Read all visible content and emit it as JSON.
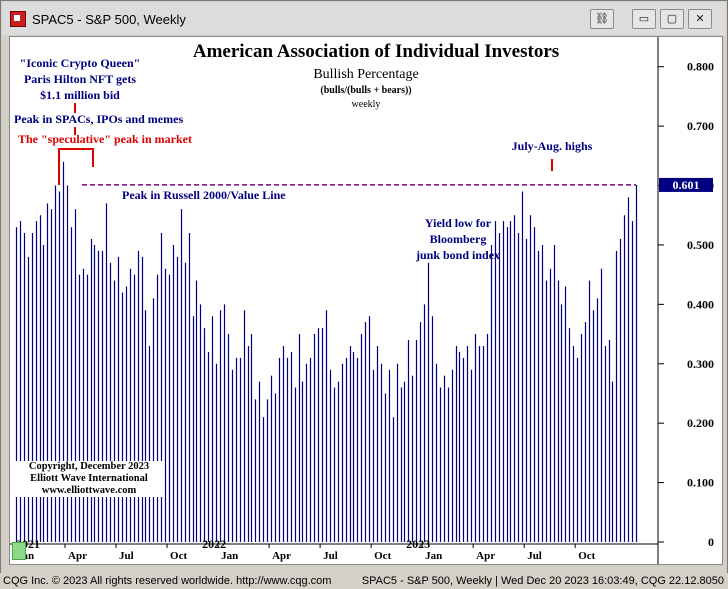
{
  "window": {
    "title": "SPAC5 - S&P 500, Weekly",
    "buttons": {
      "link": "⛓",
      "minimize": "▭",
      "restore": "▢",
      "close": "✕"
    }
  },
  "chart_data": {
    "type": "bar",
    "title": "American Association of Individual Investors",
    "subtitle": "Bullish Percentage",
    "subtitle2": "(bulls/(bulls + bears))",
    "subtitle3": "weekly",
    "ylim": [
      0,
      0.85
    ],
    "yticks": [
      "0.800",
      "0.700",
      "0.600",
      "0.500",
      "0.400",
      "0.300",
      "0.200",
      "0.100",
      "0"
    ],
    "ytick_values": [
      0.8,
      0.7,
      0.6,
      0.5,
      0.4,
      0.3,
      0.2,
      0.1,
      0
    ],
    "last_value_label": "0.601",
    "last_value": 0.601,
    "reference_line_value": 0.601,
    "xticks": [
      "Jan",
      "Apr",
      "Jul",
      "Oct",
      "Jan",
      "Apr",
      "Jul",
      "Oct",
      "Jan",
      "Apr",
      "Jul",
      "Oct"
    ],
    "xtick_week_index": [
      0,
      13,
      26,
      39,
      52,
      65,
      78,
      91,
      104,
      117,
      130,
      143
    ],
    "year_labels": [
      {
        "label": "2021",
        "week_index": 0
      },
      {
        "label": "2022",
        "week_index": 52
      },
      {
        "label": "2023",
        "week_index": 104
      }
    ],
    "values": [
      0.53,
      0.54,
      0.52,
      0.48,
      0.52,
      0.54,
      0.55,
      0.5,
      0.57,
      0.56,
      0.6,
      0.59,
      0.64,
      0.6,
      0.53,
      0.56,
      0.45,
      0.46,
      0.45,
      0.51,
      0.5,
      0.49,
      0.49,
      0.57,
      0.47,
      0.44,
      0.48,
      0.42,
      0.43,
      0.46,
      0.45,
      0.49,
      0.48,
      0.39,
      0.33,
      0.41,
      0.45,
      0.52,
      0.46,
      0.45,
      0.5,
      0.48,
      0.56,
      0.47,
      0.52,
      0.38,
      0.44,
      0.4,
      0.36,
      0.32,
      0.38,
      0.3,
      0.39,
      0.4,
      0.35,
      0.29,
      0.31,
      0.31,
      0.39,
      0.33,
      0.35,
      0.24,
      0.27,
      0.21,
      0.24,
      0.28,
      0.25,
      0.31,
      0.33,
      0.31,
      0.32,
      0.26,
      0.35,
      0.27,
      0.3,
      0.31,
      0.35,
      0.36,
      0.36,
      0.39,
      0.29,
      0.26,
      0.27,
      0.3,
      0.31,
      0.33,
      0.32,
      0.31,
      0.35,
      0.37,
      0.38,
      0.29,
      0.33,
      0.3,
      0.25,
      0.29,
      0.21,
      0.3,
      0.26,
      0.27,
      0.34,
      0.28,
      0.34,
      0.37,
      0.4,
      0.47,
      0.38,
      0.3,
      0.26,
      0.28,
      0.26,
      0.29,
      0.33,
      0.32,
      0.31,
      0.33,
      0.29,
      0.35,
      0.33,
      0.33,
      0.35,
      0.5,
      0.54,
      0.52,
      0.54,
      0.53,
      0.54,
      0.55,
      0.52,
      0.59,
      0.51,
      0.55,
      0.53,
      0.49,
      0.5,
      0.44,
      0.46,
      0.5,
      0.44,
      0.4,
      0.43,
      0.36,
      0.33,
      0.31,
      0.35,
      0.37,
      0.44,
      0.39,
      0.41,
      0.46,
      0.33,
      0.34,
      0.27,
      0.49,
      0.51,
      0.55,
      0.58,
      0.54,
      0.601
    ],
    "annotations": {
      "crypto_queen": [
        "\"Iconic Crypto Queen\"",
        "Paris Hilton NFT gets",
        "$1.1 million bid"
      ],
      "peak_spacs": "Peak in SPACs, IPOs and memes",
      "speculative_peak": "The \"speculative\" peak in market",
      "russell_peak": "Peak in Russell 2000/Value Line",
      "yield_low": [
        "Yield low for",
        "Bloomberg",
        "junk bond index"
      ],
      "july_aug": "July-Aug. highs"
    },
    "copyright": [
      "Copyright, December 2023",
      "Elliott Wave International",
      "www.elliottwave.com"
    ],
    "colors": {
      "bars": "#000080",
      "annotation_blue": "#000080",
      "annotation_red": "#e00000",
      "dashed_line": "#800080",
      "value_box": "#000080"
    }
  },
  "status": {
    "left": "CQG Inc. © 2023 All rights reserved worldwide. http://www.cqg.com",
    "right": "SPAC5 - S&P 500, Weekly | Wed Dec 20 2023 16:03:49, CQG 22.12.8050"
  }
}
